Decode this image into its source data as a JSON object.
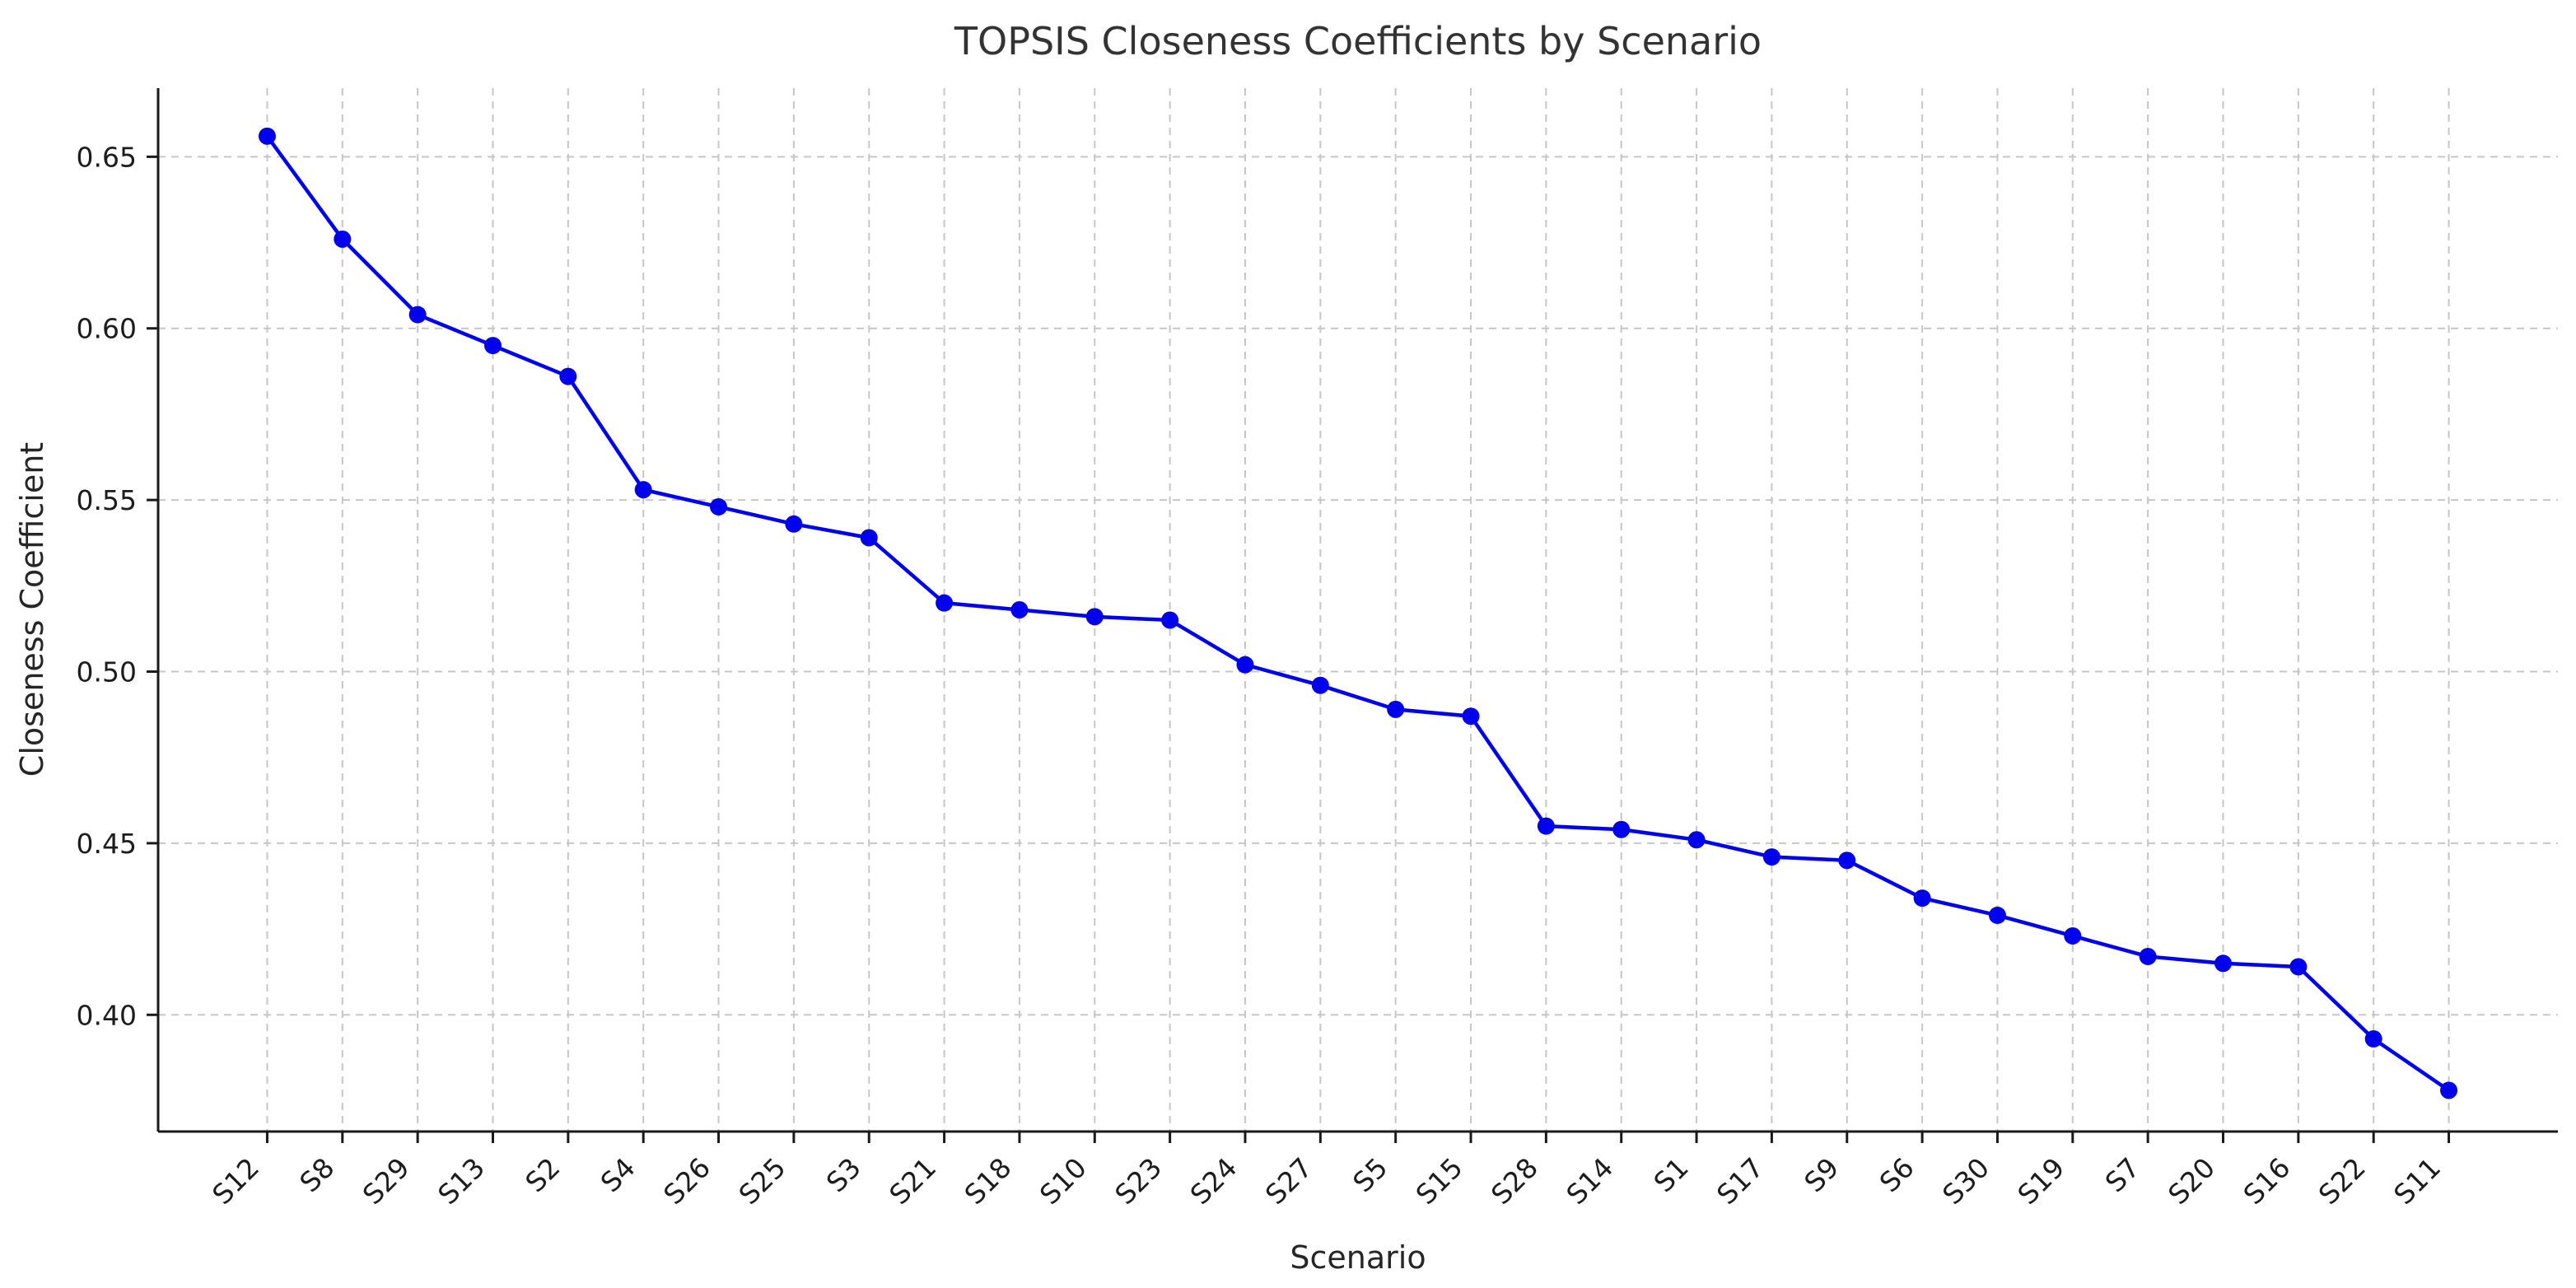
{
  "figure": {
    "background": "#ffffff"
  },
  "chart_data": {
    "type": "line",
    "title": "TOPSIS Closeness Coefficients by Scenario",
    "xlabel": "Scenario",
    "ylabel": "Closeness Coefficient",
    "categories": [
      "S12",
      "S8",
      "S29",
      "S13",
      "S2",
      "S4",
      "S26",
      "S25",
      "S3",
      "S21",
      "S18",
      "S10",
      "S23",
      "S24",
      "S27",
      "S5",
      "S15",
      "S28",
      "S14",
      "S1",
      "S17",
      "S9",
      "S6",
      "S30",
      "S19",
      "S7",
      "S20",
      "S16",
      "S22",
      "S11"
    ],
    "values": [
      0.656,
      0.626,
      0.604,
      0.595,
      0.586,
      0.553,
      0.548,
      0.543,
      0.539,
      0.52,
      0.518,
      0.516,
      0.515,
      0.502,
      0.496,
      0.489,
      0.487,
      0.455,
      0.454,
      0.451,
      0.446,
      0.445,
      0.434,
      0.429,
      0.423,
      0.417,
      0.415,
      0.414,
      0.393,
      0.378
    ],
    "ylim": [
      0.366,
      0.67
    ],
    "yticks": {
      "values": [
        0.4,
        0.45,
        0.5,
        0.55,
        0.6,
        0.65
      ],
      "labels": [
        "0.40",
        "0.45",
        "0.50",
        "0.55",
        "0.60",
        "0.65"
      ]
    },
    "x_tick_rotation_deg": 45,
    "line_color": "#0000ee",
    "marker": "circle",
    "grid": {
      "show": true,
      "style": "dashed",
      "color": "#c6c6c6"
    },
    "spine_color": "#1a1a1a",
    "legend_position": "none"
  }
}
